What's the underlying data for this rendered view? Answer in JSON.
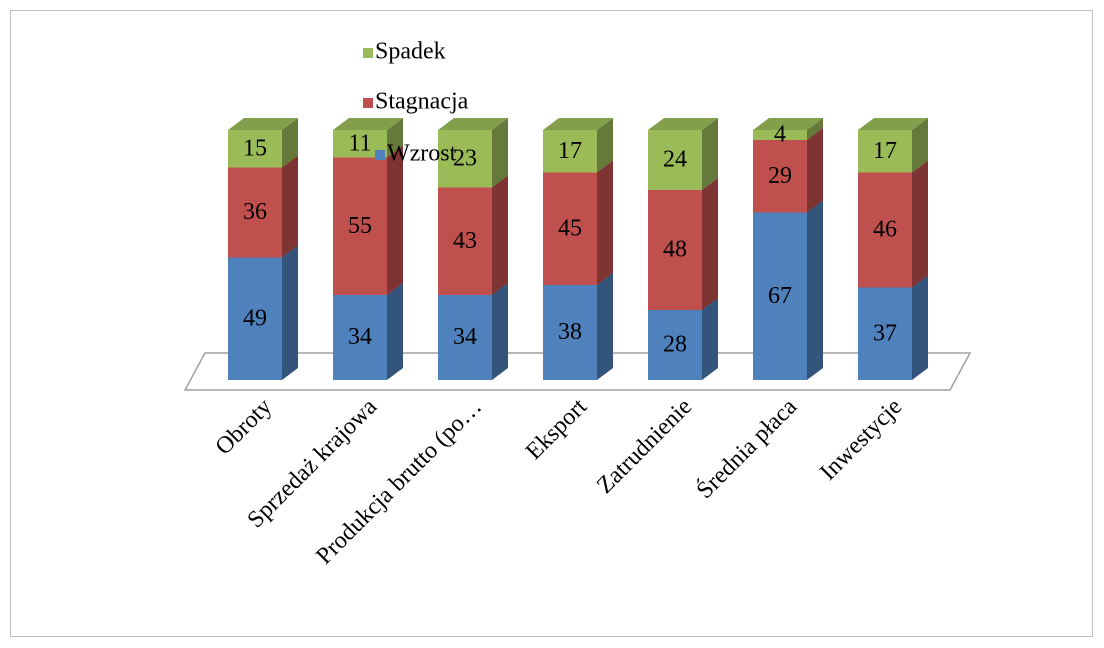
{
  "chart_data": {
    "type": "bar3d_stacked",
    "categories": [
      "Obroty",
      "Sprzedaż krajowa",
      "Produkcja brutto (po…",
      "Eksport",
      "Zatrudnienie",
      "Średnia płaca",
      "Inwestycje"
    ],
    "series": [
      {
        "name": "Wzrost",
        "color": "#4f81bd",
        "values": [
          49,
          34,
          34,
          38,
          28,
          67,
          37
        ]
      },
      {
        "name": "Stagnacja",
        "color": "#c0504d",
        "values": [
          36,
          55,
          43,
          45,
          48,
          29,
          46
        ]
      },
      {
        "name": "Spadek",
        "color": "#9bbb59",
        "values": [
          15,
          11,
          23,
          17,
          24,
          4,
          17
        ]
      }
    ],
    "ylim": [
      0,
      100
    ]
  }
}
